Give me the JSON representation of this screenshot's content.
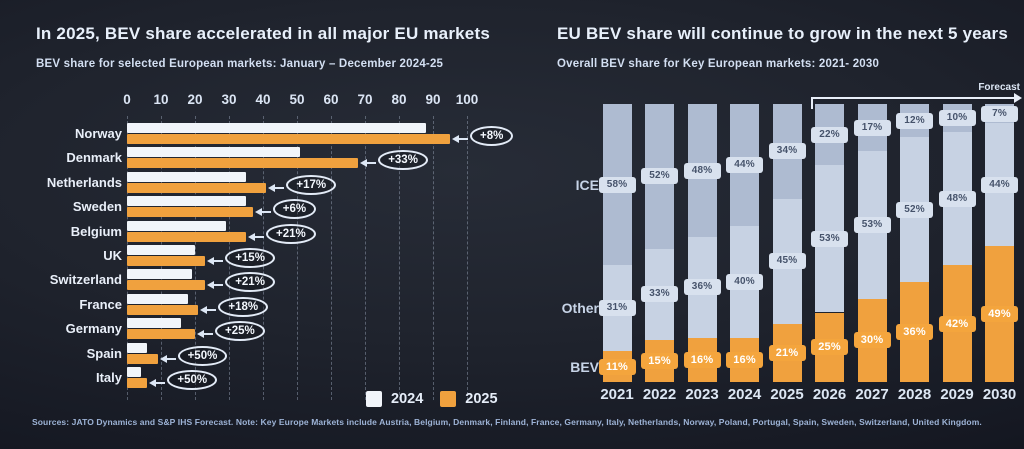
{
  "slide": {
    "footer": "Sources: JATO Dynamics and S&P IHS Forecast. Note: Key Europe Markets include Austria, Belgium, Denmark, Finland, France, Germany, Italy, Netherlands, Norway, Poland, Portugal, Spain, Sweden, Switzerland, United Kingdom."
  },
  "colors": {
    "bar_2024": "#F1F5FA",
    "bar_2025": "#F0A13E",
    "ice_segment": "#AEBBD1",
    "other_segment": "#C7D2E3",
    "bev_segment": "#F0A13E",
    "label_tab": "#D8E1EE",
    "label_tab_text": "#46536B",
    "background": "#20242E"
  },
  "chart_data": [
    {
      "type": "bar",
      "orientation": "horizontal-grouped",
      "title": "In 2025, BEV share accelerated in all major EU markets",
      "subtitle": "BEV share for selected European markets: January – December 2024-25",
      "categories": [
        "Norway",
        "Denmark",
        "Netherlands",
        "Sweden",
        "Belgium",
        "UK",
        "Switzerland",
        "France",
        "Germany",
        "Spain",
        "Italy"
      ],
      "series": [
        {
          "name": "2024",
          "color": "#F1F5FA",
          "values": [
            88,
            51,
            35,
            35,
            29,
            20,
            19,
            18,
            16,
            6,
            4
          ]
        },
        {
          "name": "2025",
          "color": "#F0A13E",
          "values": [
            95,
            68,
            41,
            37,
            35,
            23,
            23,
            21,
            20,
            9,
            6
          ]
        }
      ],
      "growth_labels": [
        "+8%",
        "+33%",
        "+17%",
        "+6%",
        "+21%",
        "+15%",
        "+21%",
        "+18%",
        "+25%",
        "+50%",
        "+50%"
      ],
      "x_ticks": [
        0,
        10,
        20,
        30,
        40,
        50,
        60,
        70,
        80,
        90,
        100
      ],
      "xlim": [
        0,
        100
      ],
      "grid": "dashed-vertical",
      "legend": [
        "2024",
        "2025"
      ],
      "legend_position": "bottom-right"
    },
    {
      "type": "bar",
      "orientation": "stacked-column",
      "title": "EU BEV share will continue to grow in the next 5 years",
      "subtitle": "Overall BEV share for Key European markets: 2021- 2030",
      "categories": [
        "2021",
        "2022",
        "2023",
        "2024",
        "2025",
        "2026",
        "2027",
        "2028",
        "2029",
        "2030"
      ],
      "series": [
        {
          "name": "ICE",
          "color": "#AEBBD1",
          "values": [
            58,
            52,
            48,
            44,
            34,
            22,
            17,
            12,
            10,
            7
          ]
        },
        {
          "name": "Other",
          "color": "#C7D2E3",
          "values": [
            31,
            33,
            36,
            40,
            45,
            53,
            53,
            52,
            48,
            44
          ]
        },
        {
          "name": "BEV",
          "color": "#F0A13E",
          "values": [
            11,
            15,
            16,
            16,
            21,
            25,
            30,
            36,
            42,
            49
          ]
        }
      ],
      "unit": "%",
      "ylim": [
        0,
        100
      ],
      "forecast": {
        "label": "Forecast",
        "from_category": "2026"
      }
    }
  ]
}
